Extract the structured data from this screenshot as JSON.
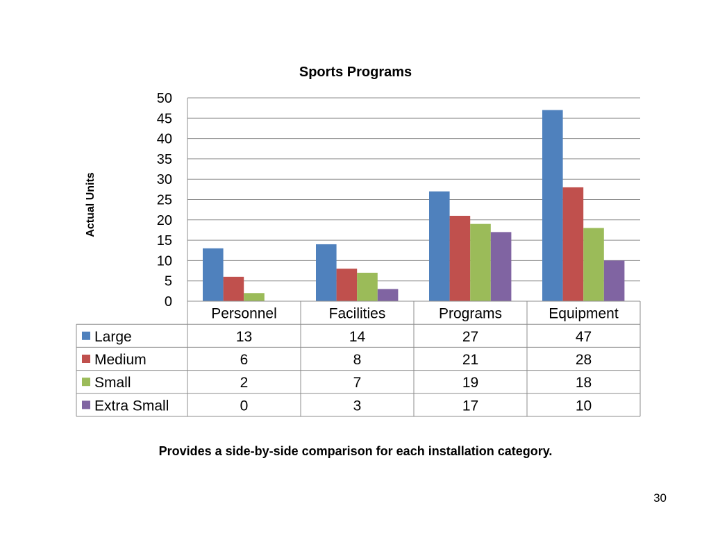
{
  "slide": {
    "caption": "Provides a side-by-side comparison for each installation category.",
    "page_number": "30"
  },
  "chart_data": {
    "type": "bar",
    "title": "Sports Programs",
    "xlabel": "",
    "ylabel": "Actual Units",
    "ylim": [
      0,
      50
    ],
    "ytick_step": 5,
    "grid": true,
    "legend_placement": "data-table",
    "categories": [
      "Personnel",
      "Facilities",
      "Programs",
      "Equipment"
    ],
    "series": [
      {
        "name": "Large",
        "color": "#4F81BD",
        "values": [
          13,
          14,
          27,
          47
        ]
      },
      {
        "name": "Medium",
        "color": "#C0504D",
        "values": [
          6,
          8,
          21,
          28
        ]
      },
      {
        "name": "Small",
        "color": "#9BBB59",
        "values": [
          2,
          7,
          19,
          18
        ]
      },
      {
        "name": "Extra Small",
        "color": "#8064A2",
        "values": [
          0,
          3,
          17,
          10
        ]
      }
    ]
  }
}
